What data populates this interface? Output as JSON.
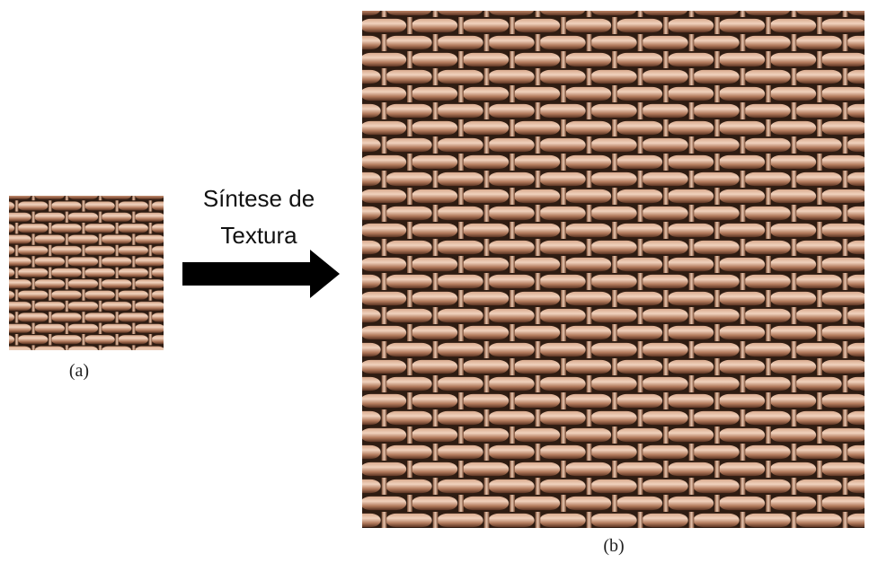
{
  "panels": [
    {
      "label": "(a)"
    },
    {
      "label": "(b)"
    }
  ],
  "arrow": {
    "label_lines": [
      "Síntese de",
      "Textura"
    ]
  }
}
